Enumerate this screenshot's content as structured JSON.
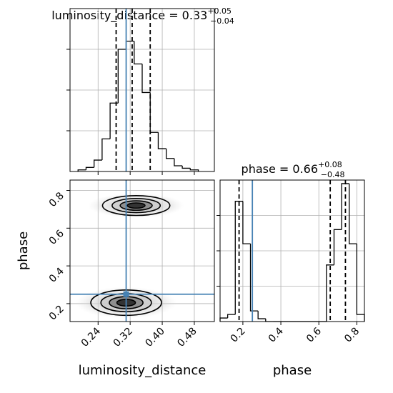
{
  "chart_data": [
    {
      "type": "histogram",
      "title": {
        "main": "luminosity_distance = 0.33",
        "upper": "+0.05",
        "lower": "−0.04"
      },
      "bins": [
        0.19,
        0.21,
        0.23,
        0.25,
        0.27,
        0.29,
        0.31,
        0.33,
        0.35,
        0.37,
        0.39,
        0.41,
        0.43,
        0.45,
        0.47,
        0.49
      ],
      "counts": [
        2,
        5,
        14,
        40,
        84,
        150,
        160,
        132,
        97,
        48,
        28,
        16,
        7,
        4,
        2
      ],
      "color": "#000000",
      "xlim": [
        0.17,
        0.53
      ],
      "xticks": [
        0.24,
        0.32,
        {
          "value": 0.4,
          "label": "0.40"
        },
        0.48
      ],
      "ylim": [
        0,
        200
      ],
      "yticks": [
        50,
        100,
        150
      ],
      "quantiles": [
        0.285,
        0.325,
        0.37
      ],
      "truth": 0.31,
      "truth_color": "#4682b4",
      "grid": true
    },
    {
      "type": "contour",
      "xlabel": "luminosity_distance",
      "ylabel": "phase",
      "xlim": [
        0.17,
        0.53
      ],
      "xticks": [
        0.24,
        0.32,
        {
          "value": 0.4,
          "label": "0.40"
        },
        0.48
      ],
      "ylim": [
        0.105,
        0.855
      ],
      "yticks": [
        0.2,
        0.4,
        0.6,
        0.8
      ],
      "modes": [
        {
          "x": 0.335,
          "y": 0.72,
          "sx": 0.04,
          "sy": 0.025
        },
        {
          "x": 0.31,
          "y": 0.205,
          "sx": 0.042,
          "sy": 0.032
        }
      ],
      "truth": {
        "x": 0.31,
        "y": 0.25
      },
      "truth_color": "#4682b4",
      "grid": true
    },
    {
      "type": "histogram",
      "title": {
        "main": "phase = 0.66",
        "upper": "+0.08",
        "lower": "−0.48"
      },
      "xlabel": "phase",
      "bins": [
        0.08,
        0.12,
        0.16,
        0.2,
        0.24,
        0.28,
        0.32,
        0.36,
        0.4,
        0.44,
        0.48,
        0.52,
        0.56,
        0.6,
        0.64,
        0.68,
        0.72,
        0.76,
        0.8,
        0.84
      ],
      "counts": [
        5,
        10,
        170,
        110,
        15,
        4,
        0,
        0,
        0,
        0,
        0,
        0,
        0,
        0,
        80,
        130,
        195,
        110,
        10
      ],
      "color": "#000000",
      "xlim": [
        0.08,
        0.84
      ],
      "xticks": [
        0.2,
        0.4,
        0.6,
        0.8
      ],
      "ylim": [
        0,
        200
      ],
      "yticks": [
        50,
        100,
        150
      ],
      "quantiles": [
        0.18,
        0.66,
        0.74
      ],
      "truth": 0.25,
      "truth_color": "#4682b4",
      "grid": true
    }
  ]
}
